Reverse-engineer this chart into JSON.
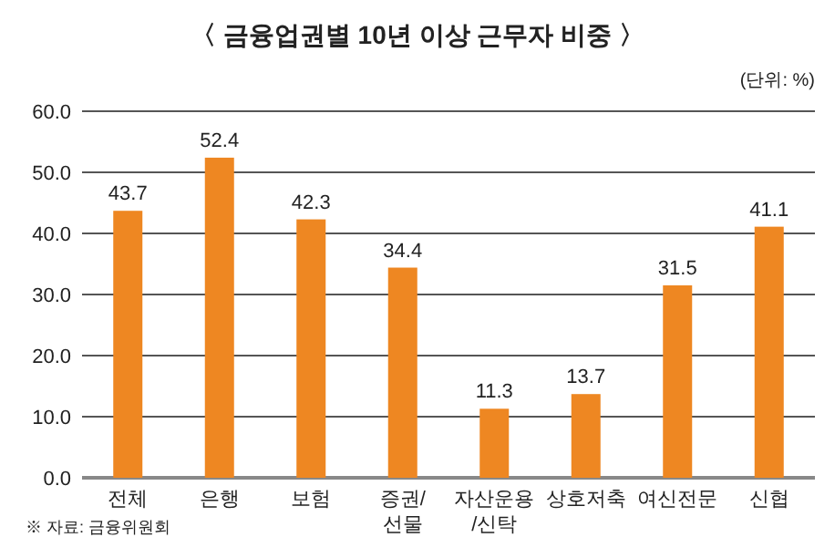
{
  "chart_data": {
    "type": "bar",
    "title": "〈 금융업권별 10년 이상 근무자 비중 〉",
    "ylabel": "(단위: %)",
    "categories": [
      "전체",
      "은행",
      "보험",
      "증권/\n선물",
      "자산운용\n/신탁",
      "상호저축",
      "여신전문",
      "신협"
    ],
    "values": [
      43.7,
      52.4,
      42.3,
      34.4,
      11.3,
      13.7,
      31.5,
      41.1
    ],
    "value_labels": [
      "43.7",
      "52.4",
      "42.3",
      "34.4",
      "11.3",
      "13.7",
      "31.5",
      "41.1"
    ],
    "color": "#ee8722",
    "ylim": [
      0,
      60
    ],
    "yticks": [
      {
        "value": 0,
        "label": "0.0"
      },
      {
        "value": 10,
        "label": "10.0"
      },
      {
        "value": 20,
        "label": "20.0"
      },
      {
        "value": 30,
        "label": "30.0"
      },
      {
        "value": 40,
        "label": "40.0"
      },
      {
        "value": 50,
        "label": "50.0"
      },
      {
        "value": 60,
        "label": "60.0"
      }
    ],
    "grid": "y",
    "annotations": [
      "※ 자료: 금융위원회"
    ]
  }
}
